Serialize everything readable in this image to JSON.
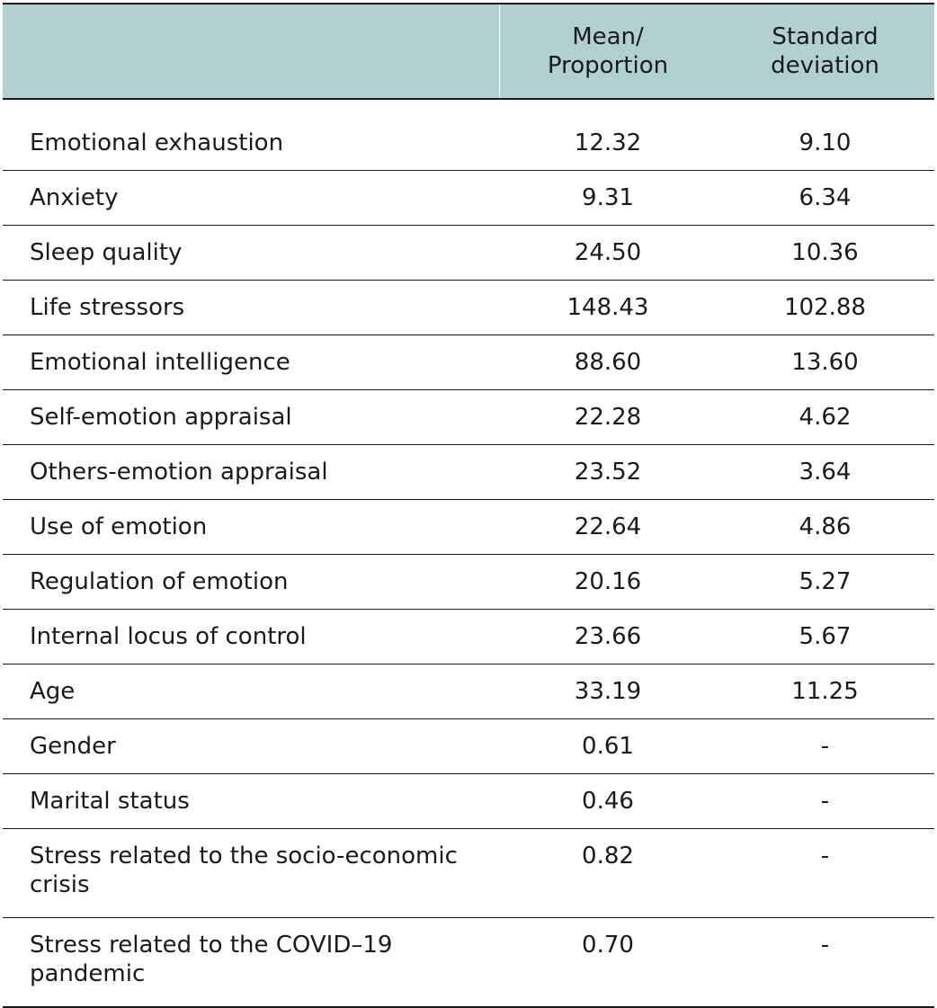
{
  "header": {
    "col0": "",
    "col1_line1": "Mean/",
    "col1_line2": "Proportion",
    "col2_line1": "Standard",
    "col2_line2": "deviation"
  },
  "rows": [
    {
      "label": "Emotional exhaustion",
      "mean": "12.32",
      "sd": "9.10"
    },
    {
      "label": "Anxiety",
      "mean": "9.31",
      "sd": "6.34"
    },
    {
      "label": "Sleep quality",
      "mean": "24.50",
      "sd": "10.36"
    },
    {
      "label": "Life stressors",
      "mean": "148.43",
      "sd": "102.88"
    },
    {
      "label": "Emotional intelligence",
      "mean": "88.60",
      "sd": "13.60"
    },
    {
      "label": "Self-emotion appraisal",
      "mean": "22.28",
      "sd": "4.62"
    },
    {
      "label": "Others-emotion appraisal",
      "mean": "23.52",
      "sd": "3.64"
    },
    {
      "label": "Use of emotion",
      "mean": "22.64",
      "sd": "4.86"
    },
    {
      "label": "Regulation of emotion",
      "mean": "20.16",
      "sd": "5.27"
    },
    {
      "label": "Internal locus of control",
      "mean": "23.66",
      "sd": "5.67"
    },
    {
      "label": "Age",
      "mean": "33.19",
      "sd": "11.25"
    },
    {
      "label": "Gender",
      "mean": "0.61",
      "sd": "-"
    },
    {
      "label": "Marital status",
      "mean": "0.46",
      "sd": "-"
    },
    {
      "label_line1": "Stress related to the socio-economic",
      "label_line2": "crisis",
      "mean": "0.82",
      "sd": "-"
    },
    {
      "label_line1": "Stress related to the COVID–19",
      "label_line2": "pandemic",
      "mean": "0.70",
      "sd": "-"
    }
  ]
}
